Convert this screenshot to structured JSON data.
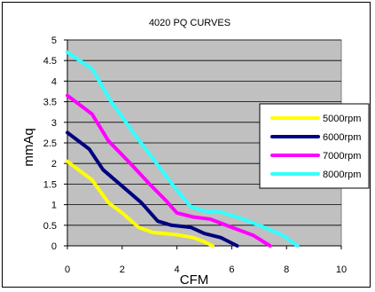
{
  "chart_data": {
    "type": "line",
    "title": "4020 PQ CURVES",
    "xlabel": "CFM",
    "ylabel": "mmAq",
    "xlim": [
      0,
      10
    ],
    "ylim": [
      0,
      5
    ],
    "x_ticks": [
      0,
      2,
      4,
      6,
      8,
      10
    ],
    "y_ticks": [
      0,
      0.5,
      1,
      1.5,
      2,
      2.5,
      3,
      3.5,
      4,
      4.5,
      5
    ],
    "x_tick_labels": [
      "0",
      "2",
      "4",
      "6",
      "8",
      "10"
    ],
    "y_tick_labels": [
      "0",
      "0.5",
      "1",
      "1.5",
      "2",
      "2.5",
      "3",
      "3.5",
      "4",
      "4.5",
      "5"
    ],
    "grid": "horizontal",
    "plot_background": "#c0c0c0",
    "legend_position": "right",
    "series": [
      {
        "name": "5000rpm",
        "color": "#ffff00",
        "x": [
          0,
          0.9,
          1.5,
          2.0,
          2.6,
          3.1,
          4.0,
          4.6,
          5.0,
          5.3
        ],
        "y": [
          2.05,
          1.6,
          1.05,
          0.8,
          0.45,
          0.33,
          0.27,
          0.2,
          0.1,
          0.0
        ]
      },
      {
        "name": "6000rpm",
        "color": "#000080",
        "x": [
          0,
          0.8,
          1.3,
          2.0,
          2.7,
          3.3,
          3.8,
          4.5,
          5.0,
          5.6,
          6.2
        ],
        "y": [
          2.75,
          2.35,
          1.85,
          1.45,
          1.05,
          0.6,
          0.5,
          0.45,
          0.3,
          0.2,
          0.0
        ]
      },
      {
        "name": "7000rpm",
        "color": "#ff00ff",
        "x": [
          0,
          0.9,
          1.5,
          2.3,
          3.0,
          3.6,
          4.0,
          4.6,
          5.2,
          6.0,
          6.8,
          7.4
        ],
        "y": [
          3.65,
          3.2,
          2.55,
          2.0,
          1.5,
          1.1,
          0.8,
          0.7,
          0.65,
          0.45,
          0.25,
          0.0
        ]
      },
      {
        "name": "8000rpm",
        "color": "#33ffff",
        "x": [
          0,
          0.9,
          1.6,
          2.4,
          3.2,
          4.0,
          4.5,
          5.0,
          5.6,
          6.2,
          7.0,
          7.8,
          8.4
        ],
        "y": [
          4.7,
          4.3,
          3.5,
          2.75,
          2.05,
          1.35,
          0.95,
          0.85,
          0.82,
          0.7,
          0.5,
          0.28,
          0.0
        ]
      }
    ]
  }
}
